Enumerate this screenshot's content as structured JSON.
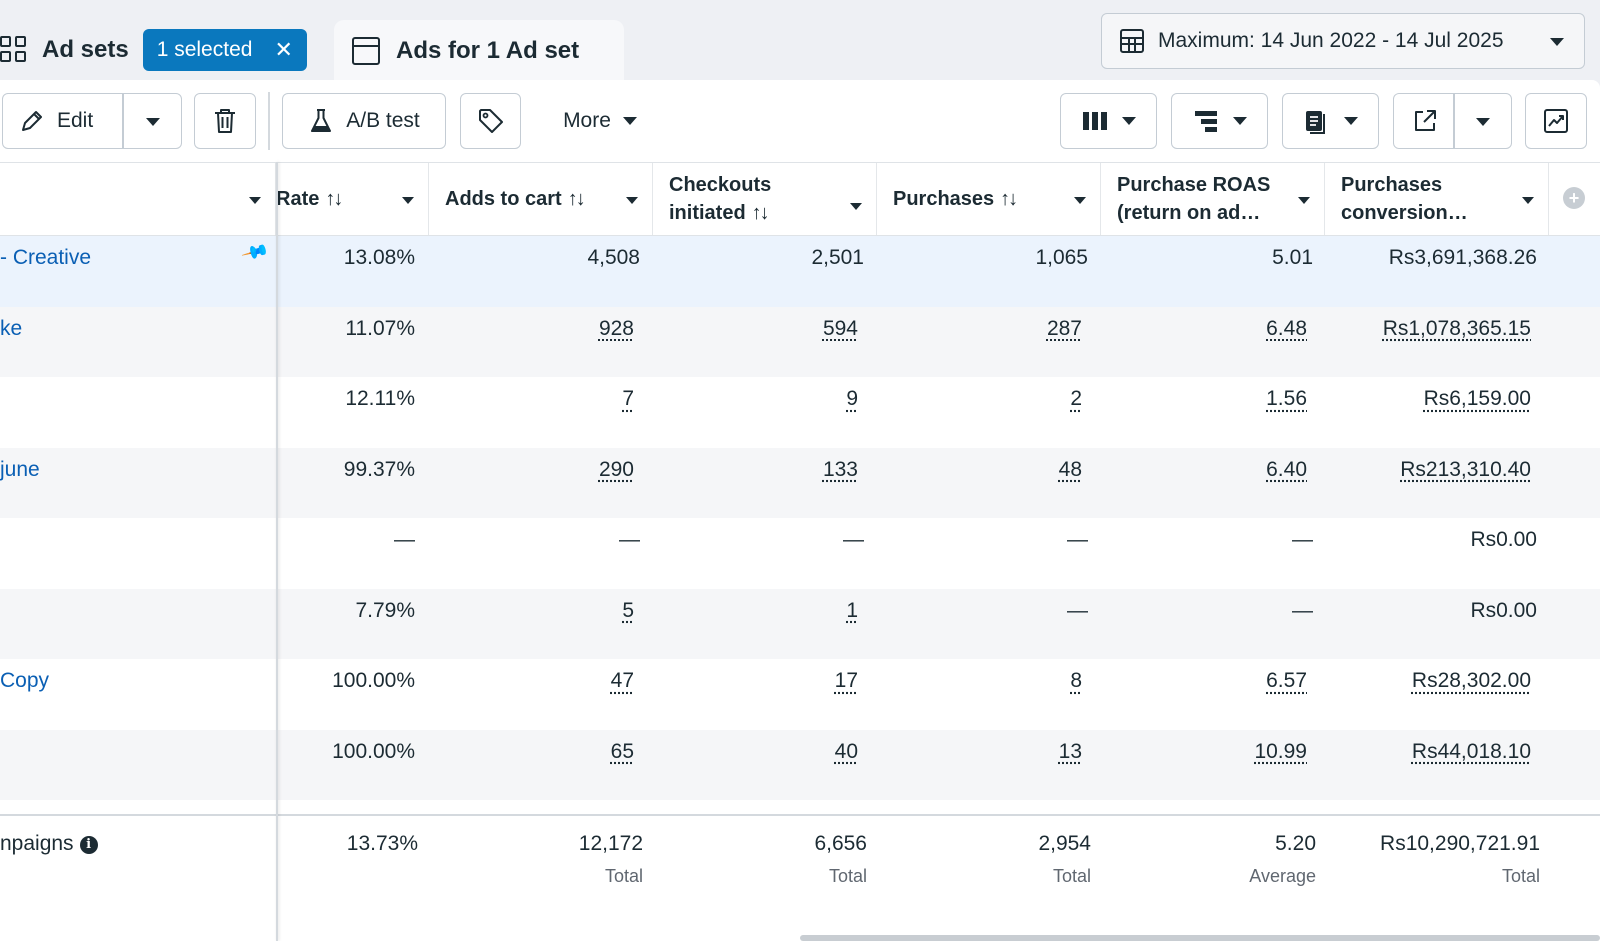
{
  "tabs": {
    "ad_sets": {
      "title": "Ad sets",
      "selected_badge": "1 selected",
      "clear_glyph": "✕"
    },
    "ads": {
      "title": "Ads for 1 Ad set"
    }
  },
  "date_range": {
    "label": "Maximum: 14 Jun 2022 - 14 Jul 2025"
  },
  "toolbar": {
    "edit_label": "Edit",
    "ab_test_label": "A/B test",
    "more_label": "More",
    "icons": [
      "pencil-icon",
      "trash-icon",
      "flask-icon",
      "tag-icon",
      "columns-icon",
      "breakdown-icon",
      "reports-icon",
      "export-icon",
      "chart-icon"
    ]
  },
  "columns": [
    {
      "key": "rate",
      "label": "Rate"
    },
    {
      "key": "adds_to_cart",
      "label": "Adds to cart"
    },
    {
      "key": "checkouts",
      "label": "Checkouts initiated"
    },
    {
      "key": "purchases",
      "label": "Purchases"
    },
    {
      "key": "roas",
      "label": "Purchase ROAS (return on ad…"
    },
    {
      "key": "conv_value",
      "label": "Purchases conversion…"
    }
  ],
  "sort_glyph": "↑↓",
  "rows": [
    {
      "name": "- Creative",
      "rate": "13.08%",
      "adds_to_cart": "4,508",
      "checkouts": "2,501",
      "purchases": "1,065",
      "roas": "5.01",
      "conv_value": "Rs3,691,368.26",
      "selected": true
    },
    {
      "name": "ke",
      "rate": "11.07%",
      "adds_to_cart": "928",
      "checkouts": "594",
      "purchases": "287",
      "roas": "6.48",
      "conv_value": "Rs1,078,365.15"
    },
    {
      "name": "",
      "rate": "12.11%",
      "adds_to_cart": "7",
      "checkouts": "9",
      "purchases": "2",
      "roas": "1.56",
      "conv_value": "Rs6,159.00"
    },
    {
      "name": "june",
      "rate": "99.37%",
      "adds_to_cart": "290",
      "checkouts": "133",
      "purchases": "48",
      "roas": "6.40",
      "conv_value": "Rs213,310.40"
    },
    {
      "name": "",
      "rate": "—",
      "adds_to_cart": "—",
      "checkouts": "—",
      "purchases": "—",
      "roas": "—",
      "conv_value": "Rs0.00"
    },
    {
      "name": "",
      "rate": "7.79%",
      "adds_to_cart": "5",
      "checkouts": "1",
      "purchases": "—",
      "roas": "—",
      "conv_value": "Rs0.00"
    },
    {
      "name": "Copy",
      "rate": "100.00%",
      "adds_to_cart": "47",
      "checkouts": "17",
      "purchases": "8",
      "roas": "6.57",
      "conv_value": "Rs28,302.00"
    },
    {
      "name": "",
      "rate": "100.00%",
      "adds_to_cart": "65",
      "checkouts": "40",
      "purchases": "13",
      "roas": "10.99",
      "conv_value": "Rs44,018.10"
    }
  ],
  "footer": {
    "name": "npaigns",
    "info_glyph": "i",
    "rate": "13.73%",
    "adds_to_cart": "12,172",
    "adds_to_cart_sub": "Total",
    "checkouts": "6,656",
    "checkouts_sub": "Total",
    "purchases": "2,954",
    "purchases_sub": "Total",
    "roas": "5.20",
    "roas_sub": "Average",
    "conv_value": "Rs10,290,721.91",
    "conv_value_sub": "Total"
  },
  "colors": {
    "accent": "#0a78be",
    "link": "#0a5fb4",
    "selected_row": "#ebf3fd"
  }
}
